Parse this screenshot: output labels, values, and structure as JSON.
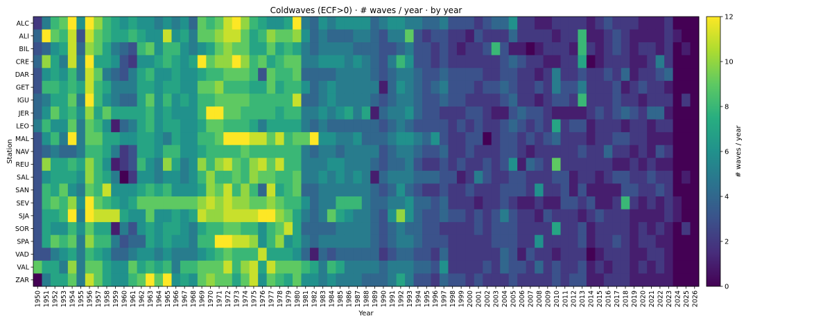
{
  "chart_data": {
    "type": "heatmap",
    "title": "Coldwaves (ECF>0) · # waves / year · by year",
    "xlabel": "Year",
    "ylabel": "Station",
    "colorbar_label": "# waves / year",
    "colormap": "viridis",
    "vmin": 0,
    "vmax": 12,
    "colorbar_ticks": [
      "0",
      "2",
      "4",
      "6",
      "8",
      "10",
      "12"
    ],
    "x": [
      "1950",
      "1951",
      "1952",
      "1953",
      "1954",
      "1955",
      "1956",
      "1957",
      "1958",
      "1959",
      "1960",
      "1961",
      "1962",
      "1963",
      "1964",
      "1965",
      "1966",
      "1967",
      "1968",
      "1969",
      "1970",
      "1971",
      "1972",
      "1973",
      "1974",
      "1975",
      "1976",
      "1977",
      "1978",
      "1979",
      "1980",
      "1981",
      "1982",
      "1983",
      "1984",
      "1985",
      "1986",
      "1987",
      "1988",
      "1989",
      "1990",
      "1991",
      "1992",
      "1993",
      "1994",
      "1995",
      "1996",
      "1997",
      "1998",
      "1999",
      "2000",
      "2001",
      "2002",
      "2003",
      "2004",
      "2005",
      "2006",
      "2007",
      "2008",
      "2009",
      "2010",
      "2011",
      "2012",
      "2013",
      "2014",
      "2015",
      "2016",
      "2017",
      "2018",
      "2019",
      "2020",
      "2021",
      "2022",
      "2023",
      "2024",
      "2025",
      "2026"
    ],
    "y": [
      "ALC",
      "ALI",
      "BIL",
      "CRE",
      "DAR",
      "GET",
      "IGU",
      "JER",
      "LEO",
      "MAL",
      "NAV",
      "REU",
      "SAL",
      "SAN",
      "SEV",
      "SJA",
      "SOR",
      "SPA",
      "VAD",
      "VAL",
      "ZAR"
    ],
    "z": [
      [
        2,
        5,
        8,
        9,
        12,
        6,
        12,
        10,
        8,
        7,
        6,
        7,
        6,
        6,
        5,
        6,
        5,
        6,
        4,
        9,
        8,
        9,
        11,
        12,
        10,
        8,
        7,
        6,
        6,
        7,
        12,
        5,
        4,
        6,
        5,
        6,
        6,
        6,
        6,
        4,
        5,
        6,
        6,
        5,
        5,
        4,
        4,
        5,
        3,
        3,
        3,
        2,
        3,
        4,
        4,
        6,
        2,
        2,
        1,
        1,
        2,
        2,
        2,
        2,
        1,
        2,
        3,
        2,
        2,
        2,
        1,
        1,
        1,
        2,
        0,
        0,
        0
      ],
      [
        4,
        12,
        9,
        8,
        11,
        3,
        11,
        9,
        8,
        7,
        7,
        8,
        7,
        6,
        6,
        11,
        6,
        7,
        5,
        9,
        9,
        10,
        11,
        11,
        9,
        7,
        8,
        10,
        9,
        9,
        10,
        6,
        4,
        5,
        4,
        4,
        4,
        5,
        5,
        4,
        3,
        5,
        5,
        9,
        3,
        2,
        3,
        3,
        2,
        2,
        1,
        3,
        2,
        2,
        2,
        4,
        2,
        2,
        2,
        2,
        1,
        2,
        2,
        8,
        1,
        1,
        2,
        3,
        2,
        1,
        1,
        1,
        1,
        2,
        1,
        0,
        0
      ],
      [
        3,
        4,
        6,
        7,
        11,
        4,
        10,
        9,
        7,
        5,
        4,
        3,
        8,
        9,
        6,
        8,
        8,
        6,
        5,
        6,
        7,
        9,
        10,
        9,
        9,
        7,
        7,
        9,
        7,
        8,
        7,
        5,
        4,
        5,
        5,
        5,
        5,
        4,
        4,
        4,
        3,
        3,
        4,
        5,
        3,
        3,
        2,
        3,
        2,
        1,
        2,
        2,
        3,
        8,
        3,
        1,
        1,
        0,
        1,
        2,
        2,
        2,
        1,
        8,
        2,
        1,
        2,
        3,
        2,
        1,
        2,
        2,
        1,
        2,
        0,
        1,
        0
      ],
      [
        4,
        10,
        7,
        5,
        11,
        5,
        12,
        7,
        7,
        6,
        3,
        2,
        6,
        6,
        7,
        8,
        7,
        6,
        7,
        12,
        9,
        10,
        10,
        12,
        10,
        8,
        9,
        7,
        8,
        9,
        9,
        5,
        5,
        6,
        6,
        6,
        5,
        6,
        5,
        4,
        3,
        5,
        8,
        6,
        3,
        3,
        2,
        3,
        2,
        2,
        2,
        2,
        2,
        2,
        3,
        4,
        3,
        2,
        2,
        1,
        1,
        2,
        2,
        7,
        0,
        1,
        2,
        2,
        2,
        1,
        1,
        2,
        5,
        2,
        0,
        0,
        0
      ],
      [
        3,
        6,
        7,
        6,
        8,
        5,
        11,
        9,
        5,
        4,
        3,
        5,
        7,
        8,
        6,
        6,
        7,
        6,
        6,
        7,
        8,
        8,
        9,
        9,
        9,
        8,
        3,
        9,
        8,
        8,
        9,
        4,
        4,
        4,
        4,
        5,
        5,
        5,
        5,
        4,
        3,
        4,
        5,
        5,
        4,
        3,
        3,
        4,
        3,
        3,
        3,
        3,
        2,
        2,
        3,
        3,
        2,
        2,
        1,
        2,
        5,
        2,
        2,
        3,
        2,
        2,
        3,
        2,
        4,
        1,
        2,
        2,
        3,
        4,
        0,
        0,
        0
      ],
      [
        3,
        8,
        8,
        7,
        8,
        7,
        11,
        8,
        7,
        5,
        5,
        5,
        7,
        7,
        6,
        7,
        7,
        6,
        6,
        9,
        9,
        10,
        8,
        8,
        8,
        7,
        7,
        9,
        7,
        8,
        8,
        6,
        4,
        5,
        6,
        5,
        5,
        5,
        5,
        5,
        1,
        4,
        6,
        5,
        4,
        3,
        4,
        5,
        3,
        3,
        3,
        2,
        3,
        3,
        4,
        3,
        2,
        2,
        3,
        2,
        5,
        3,
        3,
        5,
        2,
        2,
        2,
        3,
        1,
        2,
        3,
        2,
        2,
        1,
        0,
        0,
        0
      ],
      [
        4,
        5,
        7,
        7,
        9,
        5,
        12,
        8,
        6,
        5,
        4,
        4,
        7,
        9,
        6,
        8,
        6,
        7,
        6,
        8,
        8,
        9,
        9,
        9,
        9,
        8,
        8,
        8,
        8,
        8,
        11,
        4,
        4,
        5,
        6,
        5,
        5,
        5,
        5,
        4,
        3,
        4,
        5,
        5,
        4,
        3,
        3,
        4,
        3,
        3,
        2,
        2,
        2,
        2,
        3,
        4,
        2,
        2,
        1,
        2,
        3,
        3,
        2,
        8,
        2,
        2,
        2,
        3,
        2,
        2,
        1,
        2,
        2,
        2,
        0,
        2,
        0
      ],
      [
        4,
        6,
        9,
        7,
        8,
        6,
        10,
        7,
        9,
        7,
        7,
        7,
        7,
        8,
        6,
        7,
        6,
        6,
        6,
        8,
        12,
        12,
        9,
        9,
        8,
        8,
        8,
        8,
        7,
        8,
        8,
        5,
        5,
        6,
        5,
        6,
        7,
        5,
        7,
        1,
        4,
        5,
        5,
        6,
        4,
        3,
        3,
        2,
        2,
        2,
        3,
        3,
        2,
        1,
        1,
        3,
        4,
        3,
        3,
        2,
        1,
        1,
        1,
        1,
        2,
        3,
        2,
        3,
        4,
        3,
        2,
        4,
        4,
        1,
        0,
        0,
        0
      ],
      [
        5,
        8,
        6,
        6,
        9,
        5,
        9,
        8,
        6,
        1,
        4,
        5,
        7,
        8,
        6,
        7,
        7,
        6,
        6,
        7,
        9,
        9,
        8,
        8,
        8,
        7,
        5,
        7,
        7,
        7,
        7,
        5,
        4,
        5,
        4,
        4,
        4,
        4,
        4,
        4,
        3,
        4,
        5,
        4,
        3,
        3,
        3,
        3,
        2,
        3,
        2,
        3,
        2,
        2,
        3,
        4,
        3,
        2,
        3,
        2,
        7,
        2,
        3,
        3,
        1,
        2,
        2,
        2,
        1,
        2,
        2,
        1,
        2,
        2,
        0,
        0,
        0
      ],
      [
        3,
        6,
        8,
        5,
        12,
        5,
        9,
        9,
        7,
        7,
        6,
        6,
        7,
        7,
        6,
        5,
        7,
        6,
        6,
        8,
        8,
        9,
        12,
        12,
        12,
        11,
        11,
        9,
        11,
        8,
        9,
        9,
        12,
        6,
        6,
        5,
        5,
        6,
        4,
        4,
        4,
        5,
        6,
        6,
        5,
        4,
        6,
        3,
        2,
        2,
        3,
        3,
        0,
        2,
        3,
        3,
        2,
        3,
        2,
        3,
        4,
        2,
        2,
        2,
        1,
        2,
        2,
        3,
        3,
        2,
        2,
        1,
        1,
        1,
        0,
        0,
        0
      ],
      [
        3,
        4,
        5,
        4,
        4,
        5,
        8,
        8,
        7,
        5,
        2,
        3,
        7,
        7,
        6,
        8,
        8,
        6,
        6,
        7,
        8,
        8,
        8,
        8,
        9,
        8,
        8,
        8,
        8,
        8,
        8,
        5,
        4,
        5,
        5,
        4,
        5,
        5,
        5,
        5,
        3,
        4,
        5,
        5,
        4,
        3,
        3,
        4,
        2,
        2,
        3,
        2,
        2,
        2,
        3,
        3,
        2,
        1,
        2,
        2,
        2,
        2,
        2,
        3,
        2,
        2,
        4,
        2,
        2,
        1,
        2,
        1,
        3,
        2,
        0,
        0,
        0
      ],
      [
        3,
        10,
        7,
        7,
        8,
        7,
        10,
        8,
        6,
        1,
        2,
        3,
        8,
        6,
        5,
        10,
        7,
        5,
        6,
        10,
        8,
        10,
        11,
        9,
        8,
        10,
        11,
        9,
        11,
        8,
        8,
        5,
        5,
        5,
        6,
        6,
        5,
        5,
        5,
        4,
        3,
        4,
        4,
        5,
        3,
        2,
        2,
        3,
        2,
        3,
        2,
        2,
        3,
        2,
        3,
        6,
        1,
        4,
        3,
        2,
        9,
        2,
        2,
        2,
        2,
        2,
        2,
        1,
        1,
        2,
        1,
        2,
        1,
        1,
        0,
        0,
        0
      ],
      [
        3,
        6,
        7,
        7,
        7,
        6,
        10,
        8,
        7,
        5,
        0,
        2,
        6,
        6,
        5,
        6,
        6,
        5,
        6,
        8,
        10,
        8,
        8,
        9,
        8,
        10,
        9,
        9,
        8,
        8,
        9,
        5,
        5,
        6,
        5,
        6,
        5,
        6,
        5,
        1,
        4,
        5,
        5,
        5,
        4,
        4,
        4,
        3,
        3,
        1,
        2,
        5,
        3,
        2,
        2,
        3,
        3,
        2,
        2,
        2,
        3,
        3,
        1,
        2,
        2,
        1,
        2,
        3,
        3,
        2,
        2,
        3,
        2,
        2,
        0,
        1,
        0
      ],
      [
        3,
        8,
        7,
        9,
        6,
        5,
        9,
        8,
        11,
        6,
        6,
        6,
        7,
        8,
        7,
        8,
        6,
        6,
        6,
        7,
        10,
        9,
        11,
        8,
        10,
        8,
        4,
        11,
        7,
        8,
        9,
        4,
        4,
        5,
        5,
        5,
        5,
        5,
        5,
        4,
        3,
        4,
        6,
        4,
        3,
        2,
        2,
        3,
        2,
        2,
        3,
        2,
        2,
        2,
        3,
        3,
        3,
        2,
        6,
        2,
        2,
        3,
        1,
        3,
        1,
        1,
        1,
        1,
        3,
        3,
        2,
        2,
        3,
        2,
        0,
        0,
        0
      ],
      [
        3,
        8,
        9,
        8,
        10,
        6,
        12,
        9,
        8,
        7,
        6,
        7,
        9,
        9,
        9,
        9,
        9,
        9,
        9,
        10,
        11,
        10,
        11,
        10,
        10,
        9,
        9,
        10,
        9,
        8,
        8,
        6,
        4,
        5,
        5,
        8,
        8,
        8,
        5,
        4,
        4,
        5,
        5,
        6,
        4,
        4,
        3,
        4,
        2,
        2,
        2,
        1,
        2,
        2,
        3,
        2,
        1,
        1,
        2,
        1,
        1,
        3,
        3,
        2,
        3,
        1,
        1,
        2,
        8,
        2,
        1,
        2,
        1,
        2,
        1,
        0,
        0
      ],
      [
        3,
        7,
        7,
        8,
        12,
        5,
        12,
        11,
        11,
        11,
        7,
        6,
        6,
        9,
        6,
        6,
        7,
        6,
        7,
        11,
        10,
        10,
        11,
        11,
        11,
        11,
        12,
        12,
        10,
        9,
        7,
        5,
        4,
        5,
        9,
        7,
        6,
        5,
        5,
        4,
        3,
        6,
        10,
        6,
        4,
        3,
        3,
        4,
        3,
        3,
        2,
        3,
        2,
        3,
        5,
        3,
        2,
        2,
        1,
        3,
        2,
        2,
        2,
        1,
        2,
        3,
        2,
        2,
        2,
        1,
        1,
        1,
        1,
        2,
        1,
        0,
        0
      ],
      [
        3,
        7,
        6,
        6,
        8,
        6,
        9,
        7,
        7,
        1,
        5,
        3,
        6,
        7,
        6,
        7,
        7,
        6,
        5,
        7,
        8,
        8,
        9,
        9,
        8,
        8,
        6,
        8,
        9,
        11,
        7,
        4,
        4,
        4,
        4,
        5,
        5,
        5,
        5,
        4,
        3,
        4,
        5,
        4,
        4,
        3,
        3,
        2,
        2,
        2,
        2,
        3,
        2,
        3,
        3,
        3,
        2,
        2,
        2,
        2,
        7,
        2,
        2,
        3,
        1,
        2,
        2,
        2,
        2,
        1,
        2,
        1,
        2,
        1,
        0,
        2,
        0
      ],
      [
        3,
        7,
        9,
        8,
        9,
        5,
        10,
        8,
        8,
        5,
        3,
        4,
        4,
        7,
        6,
        7,
        6,
        6,
        5,
        8,
        8,
        12,
        12,
        11,
        11,
        10,
        6,
        8,
        10,
        6,
        7,
        5,
        4,
        5,
        5,
        5,
        5,
        5,
        5,
        4,
        3,
        4,
        5,
        5,
        4,
        3,
        3,
        3,
        2,
        2,
        2,
        2,
        2,
        3,
        3,
        3,
        2,
        2,
        6,
        2,
        2,
        2,
        2,
        3,
        1,
        2,
        2,
        3,
        2,
        1,
        2,
        2,
        1,
        1,
        0,
        0,
        0
      ],
      [
        3,
        3,
        5,
        6,
        7,
        5,
        8,
        7,
        6,
        4,
        4,
        5,
        6,
        6,
        5,
        6,
        5,
        5,
        5,
        6,
        7,
        8,
        9,
        8,
        8,
        8,
        11,
        7,
        7,
        7,
        6,
        4,
        1,
        4,
        3,
        4,
        4,
        4,
        4,
        4,
        2,
        3,
        4,
        4,
        3,
        3,
        2,
        4,
        2,
        2,
        2,
        2,
        2,
        2,
        4,
        3,
        1,
        3,
        2,
        2,
        1,
        2,
        2,
        2,
        0,
        1,
        2,
        2,
        2,
        1,
        1,
        2,
        2,
        1,
        0,
        0,
        0
      ],
      [
        9,
        7,
        7,
        5,
        10,
        5,
        9,
        9,
        7,
        6,
        6,
        9,
        7,
        8,
        7,
        8,
        5,
        8,
        8,
        9,
        9,
        9,
        11,
        8,
        10,
        11,
        7,
        11,
        9,
        9,
        9,
        8,
        7,
        5,
        8,
        7,
        5,
        5,
        5,
        5,
        4,
        5,
        5,
        5,
        4,
        4,
        3,
        6,
        2,
        2,
        2,
        2,
        3,
        2,
        4,
        3,
        3,
        2,
        4,
        2,
        3,
        2,
        2,
        3,
        1,
        2,
        1,
        2,
        2,
        1,
        2,
        1,
        2,
        1,
        0,
        0,
        0
      ],
      [
        0,
        5,
        7,
        7,
        9,
        5,
        11,
        9,
        7,
        6,
        6,
        8,
        9,
        12,
        9,
        12,
        6,
        7,
        6,
        9,
        10,
        9,
        9,
        7,
        9,
        11,
        6,
        9,
        8,
        7,
        9,
        6,
        6,
        5,
        6,
        5,
        5,
        5,
        4,
        4,
        4,
        5,
        7,
        5,
        3,
        3,
        2,
        4,
        3,
        3,
        2,
        3,
        2,
        2,
        2,
        3,
        2,
        2,
        2,
        2,
        3,
        2,
        3,
        3,
        1,
        1,
        2,
        2,
        2,
        1,
        1,
        1,
        1,
        1,
        0,
        0,
        0
      ]
    ]
  }
}
